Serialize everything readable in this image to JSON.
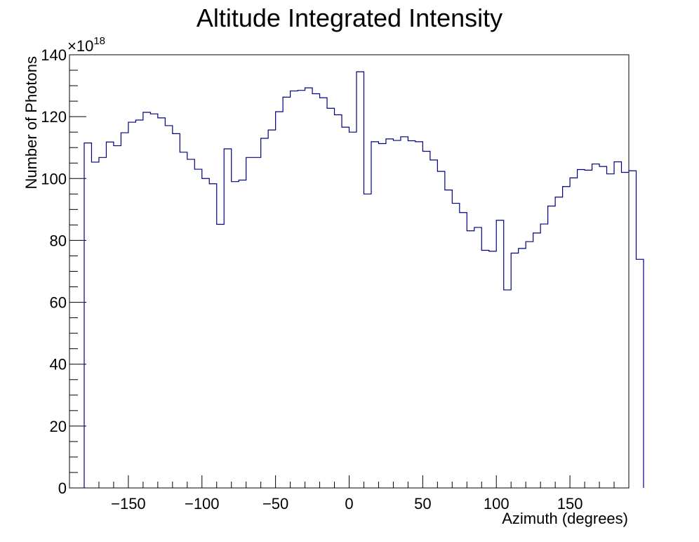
{
  "chart_data": {
    "type": "histogram",
    "title": "Altitude Integrated Intensity",
    "xlabel": "Azimuth (degrees)",
    "ylabel": "Number of Photons",
    "y_exponent_label": "×10",
    "y_exponent_value": "18",
    "xlim": [
      -190,
      190
    ],
    "ylim": [
      0,
      140
    ],
    "xticks": [
      -150,
      -100,
      -50,
      0,
      50,
      100,
      150
    ],
    "xtick_labels": [
      "−150",
      "−100",
      "−50",
      "0",
      "50",
      "100",
      "150"
    ],
    "yticks": [
      0,
      20,
      40,
      60,
      80,
      100,
      120,
      140
    ],
    "ytick_labels": [
      "0",
      "20",
      "40",
      "60",
      "80",
      "100",
      "120",
      "140"
    ],
    "grid": false,
    "legend": false,
    "line_color": "#000080",
    "bin_edges_start": -180,
    "bin_width": 5,
    "values": [
      111.5,
      105.3,
      106.8,
      111.8,
      110.6,
      114.8,
      118.2,
      118.9,
      121.4,
      120.9,
      119.6,
      117.1,
      114.5,
      108.5,
      106.2,
      103.0,
      100.0,
      98.3,
      85.2,
      109.6,
      99.0,
      99.5,
      106.8,
      106.8,
      113.0,
      115.7,
      121.6,
      126.3,
      128.3,
      128.5,
      129.3,
      127.4,
      126.1,
      122.7,
      120.6,
      116.6,
      115.0,
      134.5,
      95.0,
      111.9,
      111.3,
      112.8,
      112.3,
      113.5,
      112.2,
      111.9,
      108.8,
      106.0,
      102.3,
      96.3,
      92.0,
      89.0,
      83.1,
      84.2,
      76.8,
      76.5,
      86.5,
      64.0,
      75.9,
      77.4,
      79.6,
      82.4,
      85.3,
      91.1,
      94.0,
      97.4,
      100.2,
      102.9,
      102.7,
      104.7,
      103.9,
      101.5,
      105.4,
      102.0,
      102.5,
      73.9
    ]
  }
}
